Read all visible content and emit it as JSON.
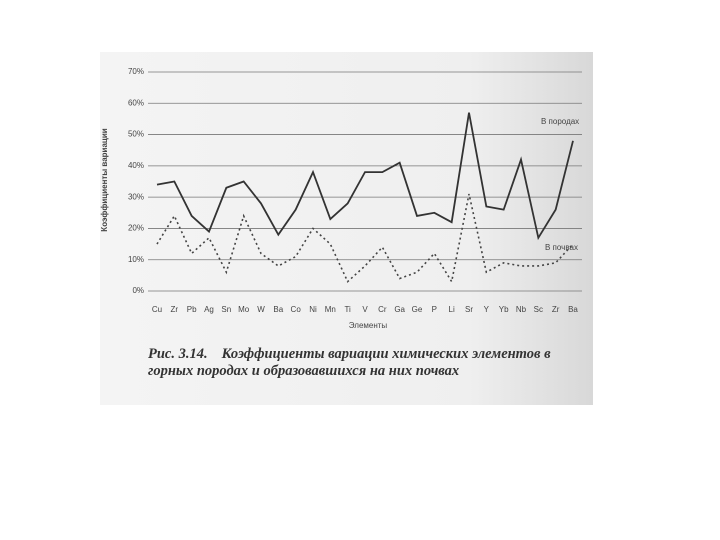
{
  "chart_data": {
    "type": "line",
    "figure_label": "Рис. 3.14.",
    "title": "Коэффициенты вариации химических элементов в горных породах и образовавшихся на них почвах",
    "y_label": "Коэффициенты вариации",
    "x_label": "Элементы",
    "categories": [
      "Cu",
      "Zr",
      "Pb",
      "Ag",
      "Sn",
      "Mo",
      "W",
      "Ba",
      "Co",
      "Ni",
      "Mn",
      "Ti",
      "V",
      "Cr",
      "Ga",
      "Ge",
      "P",
      "Li",
      "Sr",
      "Y",
      "Yb",
      "Nb",
      "Sc",
      "Zr",
      "Ba"
    ],
    "series": [
      {
        "name": "В породах",
        "color": "#333333",
        "line_style": "solid",
        "values": [
          34,
          35,
          24,
          19,
          33,
          35,
          28,
          18,
          26,
          38,
          23,
          28,
          38,
          38,
          41,
          24,
          25,
          22,
          57,
          27,
          26,
          42,
          17,
          26,
          48
        ]
      },
      {
        "name": "В почвах",
        "color": "#444444",
        "line_style": "dotted",
        "values": [
          15,
          24,
          12,
          17,
          6,
          24,
          12,
          8,
          11,
          20,
          15,
          3,
          8,
          14,
          4,
          6,
          12,
          3,
          31,
          6,
          9,
          8,
          8,
          9,
          15
        ]
      }
    ],
    "ylim": [
      0,
      70
    ],
    "yticks": [
      {
        "value": 0,
        "label": "0%"
      },
      {
        "value": 10,
        "label": "10%"
      },
      {
        "value": 20,
        "label": "20%"
      },
      {
        "value": 30,
        "label": "30%"
      },
      {
        "value": 40,
        "label": "40%"
      },
      {
        "value": 50,
        "label": "50%"
      },
      {
        "value": 60,
        "label": "60%"
      },
      {
        "value": 70,
        "label": "70%"
      }
    ],
    "grid": true
  }
}
